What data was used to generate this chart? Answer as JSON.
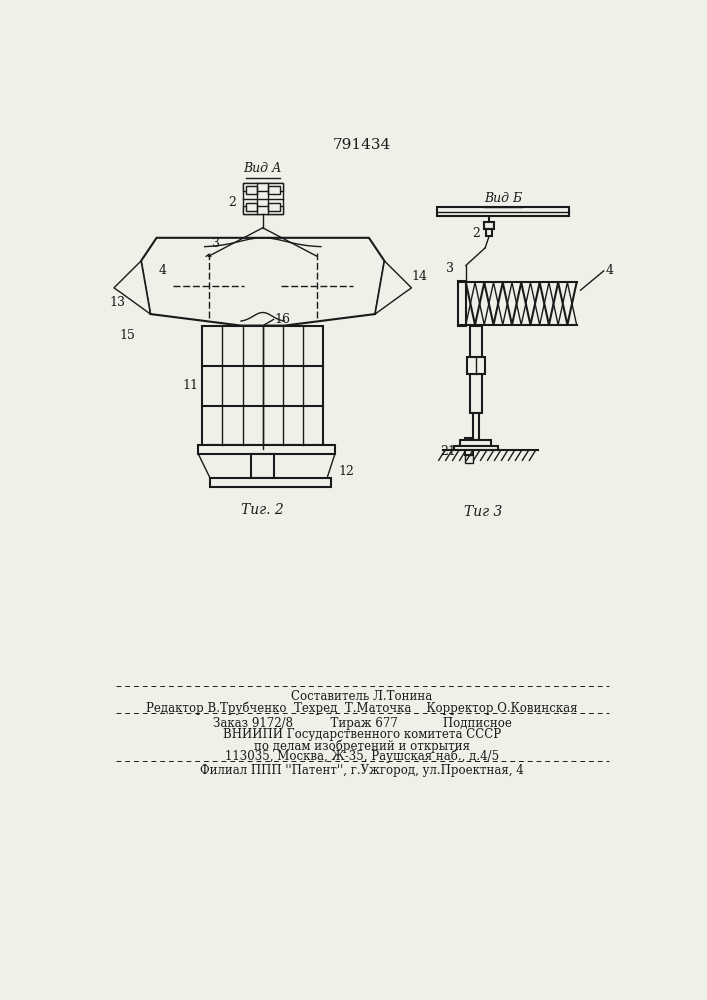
{
  "patent_number": "791434",
  "fig2_label": "Τиг. 2",
  "fig3_label": "Τиг 3",
  "vid_a_label": "Вид А",
  "vid_b_label": "Вид Б",
  "label_2": "2",
  "label_3": "3",
  "label_4": "4",
  "label_11": "11",
  "label_12": "12",
  "label_13": "13",
  "label_14": "14",
  "label_15": "15",
  "label_16": "16",
  "label_21": "21",
  "footer_line1": "Составитель Л.Тонина",
  "footer_line2": "Редактор В.Трубченко  Техред  Т.Маточка    Корректор О.Ковинская",
  "footer_line3": "Заказ 9172/8          Тираж 677            Подписное",
  "footer_line4": "ВНИИПИ Государственного комитета СССР",
  "footer_line5": "по делам изобретений и открытия",
  "footer_line6": "113035, Москва, Ж-35, Раушская наб., д.4/5",
  "footer_line7": "Филиал ППП ''Патент'', г.Ужгород, ул.Проектная, 4",
  "bg_color": "#f0efe8",
  "line_color": "#1a1a1a"
}
